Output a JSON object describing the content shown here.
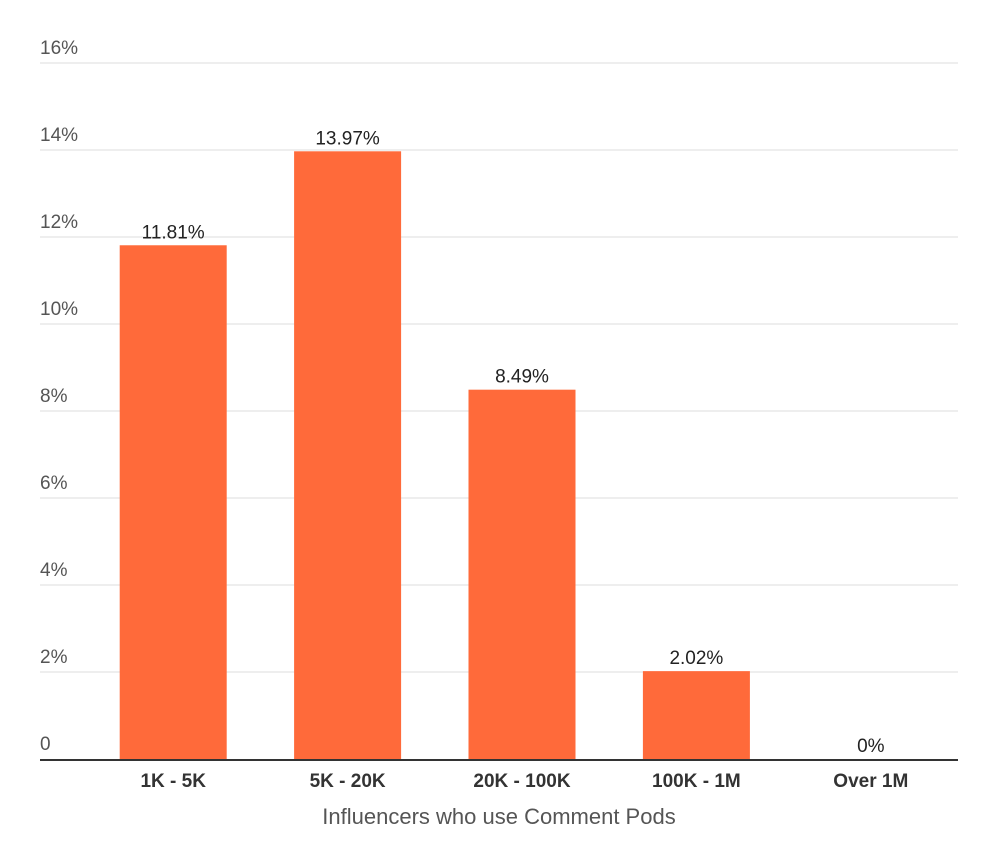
{
  "chart_data": {
    "type": "bar",
    "categories": [
      "1K - 5K",
      "5K - 20K",
      "20K - 100K",
      "100K - 1M",
      "Over 1M"
    ],
    "values": [
      11.81,
      13.97,
      8.49,
      2.02,
      0
    ],
    "data_labels": [
      "11.81%",
      "13.97%",
      "8.49%",
      "2.02%",
      "0%"
    ],
    "title": "",
    "xlabel": "Influencers who use Comment Pods",
    "ylabel": "",
    "ylim": [
      0,
      16
    ],
    "yticks": [
      0,
      2,
      4,
      6,
      8,
      10,
      12,
      14,
      16
    ],
    "ytick_labels": [
      "0",
      "2%",
      "4%",
      "6%",
      "8%",
      "10%",
      "12%",
      "14%",
      "16%"
    ],
    "grid": true,
    "legend": "none",
    "bar_color": "#ff6a3a",
    "grid_color": "#dedede"
  }
}
